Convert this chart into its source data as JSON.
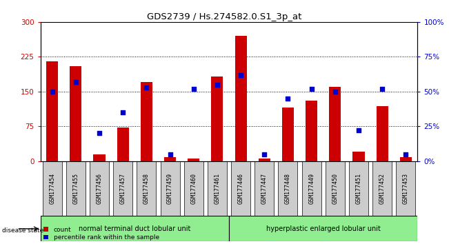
{
  "title": "GDS2739 / Hs.274582.0.S1_3p_at",
  "samples": [
    "GSM177454",
    "GSM177455",
    "GSM177456",
    "GSM177457",
    "GSM177458",
    "GSM177459",
    "GSM177460",
    "GSM177461",
    "GSM177446",
    "GSM177447",
    "GSM177448",
    "GSM177449",
    "GSM177450",
    "GSM177451",
    "GSM177452",
    "GSM177453"
  ],
  "counts": [
    215,
    205,
    15,
    72,
    170,
    8,
    5,
    182,
    270,
    5,
    115,
    130,
    160,
    20,
    118,
    8
  ],
  "percentiles": [
    50,
    57,
    20,
    35,
    53,
    5,
    52,
    55,
    62,
    5,
    45,
    52,
    50,
    22,
    52,
    5
  ],
  "group1_label": "normal terminal duct lobular unit",
  "group2_label": "hyperplastic enlarged lobular unit",
  "group1_count": 8,
  "group2_count": 8,
  "left_ylim": [
    0,
    300
  ],
  "right_ylim": [
    0,
    100
  ],
  "left_yticks": [
    0,
    75,
    150,
    225,
    300
  ],
  "right_yticks": [
    0,
    25,
    50,
    75,
    100
  ],
  "right_yticklabels": [
    "0%",
    "25%",
    "50%",
    "75%",
    "100%"
  ],
  "bar_color": "#cc0000",
  "dot_color": "#0000cc",
  "tick_label_bg": "#cccccc",
  "group1_bg": "#90ee90",
  "group2_bg": "#90ee90",
  "bar_width": 0.5,
  "dot_size": 22,
  "legend_count_label": "count",
  "legend_pct_label": "percentile rank within the sample"
}
